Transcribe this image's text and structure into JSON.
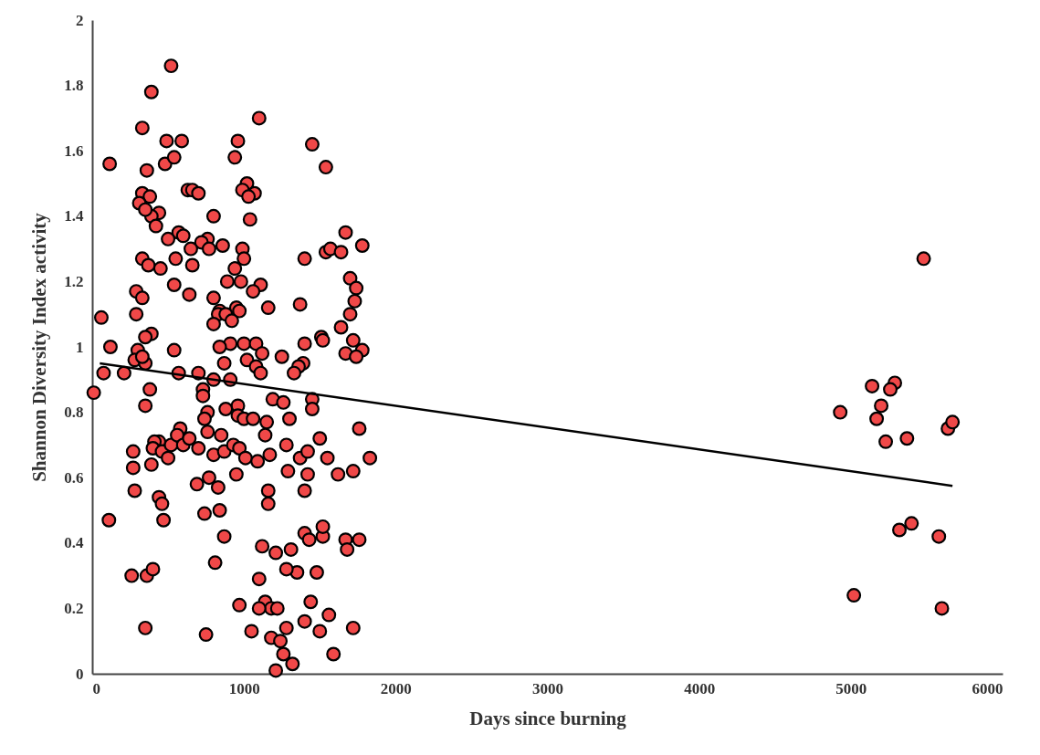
{
  "chart_data": {
    "type": "scatter",
    "xlabel": "Days since burning",
    "ylabel": "Shannon Diversity Index activity",
    "xlim": [
      0,
      6000
    ],
    "xticks": [
      0,
      1000,
      2000,
      3000,
      4000,
      5000,
      6000
    ],
    "ylim": [
      0,
      2
    ],
    "yticks": [
      0,
      0.2,
      0.4,
      0.6,
      0.8,
      1,
      1.2,
      1.4,
      1.6,
      1.8,
      2
    ],
    "grid": false,
    "series": [
      {
        "marker": "circle",
        "color": "#f04848",
        "x": [
          520,
          390,
          1100,
          330,
          590,
          490,
          960,
          1450,
          115,
          480,
          1540,
          540,
          940,
          360,
          1020,
          990,
          1070,
          1030,
          630,
          660,
          700,
          330,
          380,
          310,
          440,
          390,
          350,
          800,
          1040,
          420,
          570,
          1670,
          600,
          500,
          760,
          720,
          860,
          990,
          650,
          1540,
          1570,
          1640,
          1780,
          1000,
          1400,
          770,
          330,
          550,
          5480,
          660,
          370,
          450,
          940,
          890,
          540,
          980,
          1110,
          1700,
          1740,
          290,
          640,
          330,
          800,
          1060,
          1730,
          1370,
          840,
          950,
          1160,
          830,
          880,
          970,
          290,
          1700,
          60,
          920,
          800,
          1640,
          390,
          350,
          1510,
          1520,
          1400,
          910,
          1000,
          1080,
          1720,
          120,
          300,
          540,
          840,
          1120,
          1250,
          1670,
          1780,
          1740,
          280,
          1020,
          350,
          330,
          1390,
          1360,
          1080,
          870,
          75,
          210,
          570,
          700,
          1110,
          1330,
          910,
          800,
          730,
          380,
          10,
          730,
          1190,
          1450,
          1260,
          350,
          960,
          880,
          1450,
          760,
          4930,
          5140,
          5290,
          5260,
          5200,
          5170,
          5230,
          5370,
          5640,
          5670,
          740,
          960,
          1000,
          1060,
          1150,
          1300,
          1500,
          1760,
          760,
          850,
          1140,
          580,
          440,
          410,
          400,
          460,
          520,
          560,
          600,
          640,
          700,
          800,
          870,
          930,
          970,
          500,
          1010,
          1090,
          1280,
          1170,
          1370,
          1420,
          270,
          270,
          390,
          1550,
          1830,
          950,
          1290,
          1420,
          1620,
          1720,
          280,
          690,
          770,
          830,
          1160,
          1400,
          440,
          460,
          1160,
          740,
          840,
          110,
          470,
          870,
          1400,
          1430,
          1520,
          1520,
          1670,
          1760,
          1680,
          5320,
          5400,
          5580,
          810,
          1120,
          1210,
          1310,
          260,
          360,
          400,
          1100,
          1350,
          1480,
          1280,
          5020,
          970,
          1140,
          1180,
          1220,
          1100,
          1440,
          350,
          1050,
          1280,
          1400,
          1500,
          1560,
          1720,
          750,
          1180,
          1240,
          1260,
          1320,
          1590,
          1210,
          5600
        ],
        "values": [
          1.86,
          1.78,
          1.7,
          1.67,
          1.63,
          1.63,
          1.63,
          1.62,
          1.56,
          1.56,
          1.55,
          1.58,
          1.58,
          1.54,
          1.5,
          1.48,
          1.47,
          1.46,
          1.48,
          1.48,
          1.47,
          1.47,
          1.46,
          1.44,
          1.41,
          1.4,
          1.42,
          1.4,
          1.39,
          1.37,
          1.35,
          1.35,
          1.34,
          1.33,
          1.33,
          1.32,
          1.31,
          1.3,
          1.3,
          1.29,
          1.3,
          1.29,
          1.31,
          1.27,
          1.27,
          1.3,
          1.27,
          1.27,
          1.27,
          1.25,
          1.25,
          1.24,
          1.24,
          1.2,
          1.19,
          1.2,
          1.19,
          1.21,
          1.18,
          1.17,
          1.16,
          1.15,
          1.15,
          1.17,
          1.14,
          1.13,
          1.11,
          1.12,
          1.12,
          1.1,
          1.1,
          1.11,
          1.1,
          1.1,
          1.09,
          1.08,
          1.07,
          1.06,
          1.04,
          1.03,
          1.03,
          1.02,
          1.01,
          1.01,
          1.01,
          1.01,
          1.02,
          1.0,
          0.99,
          0.99,
          1.0,
          0.98,
          0.97,
          0.98,
          0.99,
          0.97,
          0.96,
          0.96,
          0.95,
          0.97,
          0.95,
          0.94,
          0.94,
          0.95,
          0.92,
          0.92,
          0.92,
          0.92,
          0.92,
          0.92,
          0.9,
          0.9,
          0.87,
          0.87,
          0.86,
          0.85,
          0.84,
          0.84,
          0.83,
          0.82,
          0.82,
          0.81,
          0.81,
          0.8,
          0.8,
          0.88,
          0.89,
          0.87,
          0.82,
          0.78,
          0.71,
          0.72,
          0.75,
          0.77,
          0.78,
          0.79,
          0.78,
          0.78,
          0.77,
          0.78,
          0.72,
          0.75,
          0.74,
          0.73,
          0.73,
          0.75,
          0.71,
          0.71,
          0.69,
          0.68,
          0.7,
          0.73,
          0.7,
          0.72,
          0.69,
          0.67,
          0.68,
          0.7,
          0.69,
          0.66,
          0.66,
          0.65,
          0.7,
          0.67,
          0.66,
          0.68,
          0.68,
          0.63,
          0.64,
          0.66,
          0.66,
          0.61,
          0.62,
          0.61,
          0.61,
          0.62,
          0.56,
          0.58,
          0.6,
          0.57,
          0.56,
          0.56,
          0.54,
          0.52,
          0.52,
          0.49,
          0.5,
          0.47,
          0.47,
          0.42,
          0.43,
          0.41,
          0.42,
          0.45,
          0.41,
          0.41,
          0.38,
          0.44,
          0.46,
          0.42,
          0.34,
          0.39,
          0.37,
          0.38,
          0.3,
          0.3,
          0.32,
          0.29,
          0.31,
          0.31,
          0.32,
          0.24,
          0.21,
          0.22,
          0.2,
          0.2,
          0.2,
          0.22,
          0.14,
          0.13,
          0.14,
          0.16,
          0.13,
          0.18,
          0.14,
          0.12,
          0.11,
          0.1,
          0.06,
          0.03,
          0.06,
          0.01,
          0.2
        ]
      },
      {
        "type": "line",
        "marker": "none",
        "color": "#000000",
        "x": [
          50,
          5670
        ],
        "values": [
          0.95,
          0.575
        ]
      }
    ]
  }
}
